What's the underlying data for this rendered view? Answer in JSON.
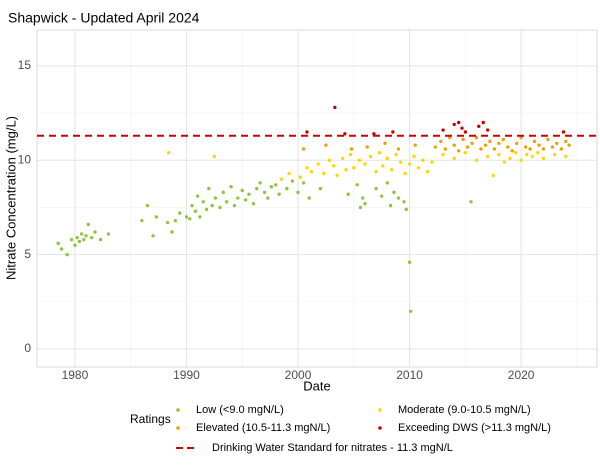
{
  "chart_data": {
    "type": "scatter",
    "title": "Shapwick - Updated April 2024",
    "x_label": "Date",
    "y_label": "Nitrate Concentration (mg/L)",
    "xlim": [
      1976.6,
      2026.8
    ],
    "ylim": [
      -0.95,
      16.9
    ],
    "xticks": [
      1980,
      1990,
      2000,
      2010,
      2020
    ],
    "yticks": [
      0,
      5,
      10,
      15
    ],
    "x_minor_ticks": [
      1985,
      1995,
      2005,
      2015,
      2025
    ],
    "y_minor_ticks": [
      2.5,
      7.5,
      12.5
    ],
    "grid": true,
    "legend_title": "Ratings",
    "legend_position": "bottom",
    "reference_line": {
      "value": 11.3,
      "label": "Drinking Water Standard for nitrates - 11.3 mgN/L",
      "color": "#cc0000",
      "dash": true
    },
    "series": [
      {
        "name": "Low (<9.0 mgN/L)",
        "color": "#8cc63f",
        "x": [
          1978.5,
          1978.8,
          1979.3,
          1979.7,
          1980.0,
          1980.2,
          1980.4,
          1980.6,
          1980.8,
          1981.0,
          1981.2,
          1981.5,
          1981.8,
          1982.3,
          1983.0,
          1986.0,
          1986.5,
          1987.0,
          1987.3,
          1988.3,
          1988.7,
          1989.0,
          1989.4,
          1990.0,
          1990.3,
          1990.5,
          1990.8,
          1991.0,
          1991.2,
          1991.5,
          1991.8,
          1992.0,
          1992.3,
          1992.6,
          1993.0,
          1993.3,
          1993.6,
          1994.0,
          1994.3,
          1994.6,
          1995.0,
          1995.3,
          1995.6,
          1996.0,
          1996.3,
          1996.6,
          1997.0,
          1997.3,
          1997.6,
          1998.0,
          1998.3,
          1999.0,
          1999.5,
          2000.0,
          2000.5,
          2001.0,
          2002.0,
          2004.5,
          2005.3,
          2005.6,
          2005.8,
          2006.0,
          2007.0,
          2007.5,
          2008.0,
          2008.3,
          2008.6,
          2009.0,
          2009.5,
          2009.7,
          2010.0,
          2010.1,
          2015.5
        ],
        "values": [
          5.6,
          5.3,
          5.0,
          5.8,
          5.5,
          5.9,
          5.7,
          6.1,
          5.8,
          6.0,
          6.6,
          5.9,
          6.2,
          5.8,
          6.1,
          6.8,
          7.6,
          6.0,
          7.0,
          6.7,
          6.2,
          6.8,
          7.2,
          7.0,
          6.9,
          7.6,
          7.3,
          8.1,
          7.0,
          7.8,
          7.4,
          8.5,
          7.6,
          8.0,
          7.5,
          8.3,
          7.8,
          8.6,
          7.6,
          8.0,
          8.4,
          7.9,
          8.2,
          7.7,
          8.5,
          8.8,
          8.3,
          8.0,
          8.6,
          8.7,
          8.2,
          8.5,
          8.9,
          8.3,
          8.8,
          8.0,
          8.5,
          8.2,
          8.7,
          7.5,
          8.0,
          7.7,
          8.5,
          8.1,
          8.8,
          7.6,
          8.3,
          8.0,
          7.8,
          7.4,
          4.6,
          2.0,
          7.8
        ]
      },
      {
        "name": "Moderate (9.0-10.5 mgN/L)",
        "color": "#ffd700",
        "x": [
          1988.4,
          1992.5,
          1998.5,
          1999.2,
          2000.2,
          2000.8,
          2001.2,
          2001.8,
          2002.3,
          2002.8,
          2003.2,
          2003.5,
          2004.0,
          2004.3,
          2004.7,
          2005.0,
          2005.5,
          2006.0,
          2006.5,
          2007.0,
          2007.3,
          2007.6,
          2008.0,
          2008.4,
          2008.8,
          2009.2,
          2009.6,
          2010.0,
          2010.4,
          2010.8,
          2011.2,
          2011.6,
          2012.0,
          2013.0,
          2014.0,
          2015.0,
          2016.0,
          2017.0,
          2017.5,
          2018.0,
          2018.5,
          2019.0,
          2019.5,
          2020.0,
          2020.5,
          2021.0,
          2021.5,
          2022.0,
          2023.0,
          2024.0
        ],
        "values": [
          10.4,
          10.2,
          9.0,
          9.3,
          9.1,
          9.6,
          9.4,
          9.8,
          9.3,
          10.0,
          9.7,
          9.2,
          10.1,
          9.5,
          10.3,
          9.6,
          10.0,
          9.8,
          10.2,
          9.4,
          10.4,
          9.7,
          10.1,
          9.5,
          10.3,
          9.9,
          9.3,
          9.8,
          10.2,
          9.6,
          10.0,
          9.4,
          9.9,
          10.3,
          10.1,
          10.4,
          10.0,
          10.2,
          9.2,
          10.3,
          9.9,
          10.1,
          10.4,
          10.0,
          10.3,
          10.2,
          10.4,
          10.1,
          10.3,
          10.2
        ]
      },
      {
        "name": "Elevated (10.5-11.3 mgN/L)",
        "color": "#f0a000",
        "x": [
          2000.5,
          2002.5,
          2004.8,
          2006.2,
          2007.8,
          2009.0,
          2010.5,
          2012.3,
          2012.8,
          2013.2,
          2013.6,
          2014.0,
          2014.4,
          2014.8,
          2015.2,
          2015.6,
          2016.0,
          2016.4,
          2016.8,
          2017.2,
          2017.6,
          2018.0,
          2018.4,
          2018.8,
          2019.2,
          2019.6,
          2020.0,
          2020.4,
          2020.8,
          2021.2,
          2021.6,
          2022.0,
          2022.4,
          2022.8,
          2023.2,
          2023.6,
          2024.0,
          2024.3
        ],
        "values": [
          10.6,
          10.8,
          10.6,
          10.7,
          10.9,
          10.6,
          10.8,
          10.7,
          11.0,
          10.6,
          11.2,
          10.8,
          10.5,
          11.1,
          10.7,
          10.9,
          11.2,
          10.6,
          10.8,
          11.0,
          10.6,
          10.9,
          11.1,
          10.7,
          10.5,
          10.9,
          11.2,
          10.7,
          10.6,
          11.0,
          10.8,
          10.6,
          11.1,
          10.7,
          10.9,
          10.6,
          11.0,
          10.8
        ]
      },
      {
        "name": "Exceeding DWS (>11.3 mgN/L)",
        "color": "#cc0000",
        "x": [
          2000.8,
          2003.3,
          2004.2,
          2006.8,
          2008.5,
          2013.0,
          2014.0,
          2014.4,
          2014.7,
          2015.0,
          2016.2,
          2016.6,
          2017.0,
          2023.8
        ],
        "values": [
          11.5,
          12.8,
          11.4,
          11.4,
          11.5,
          11.6,
          11.9,
          12.0,
          11.7,
          11.5,
          11.8,
          12.0,
          11.6,
          11.5
        ]
      }
    ]
  }
}
